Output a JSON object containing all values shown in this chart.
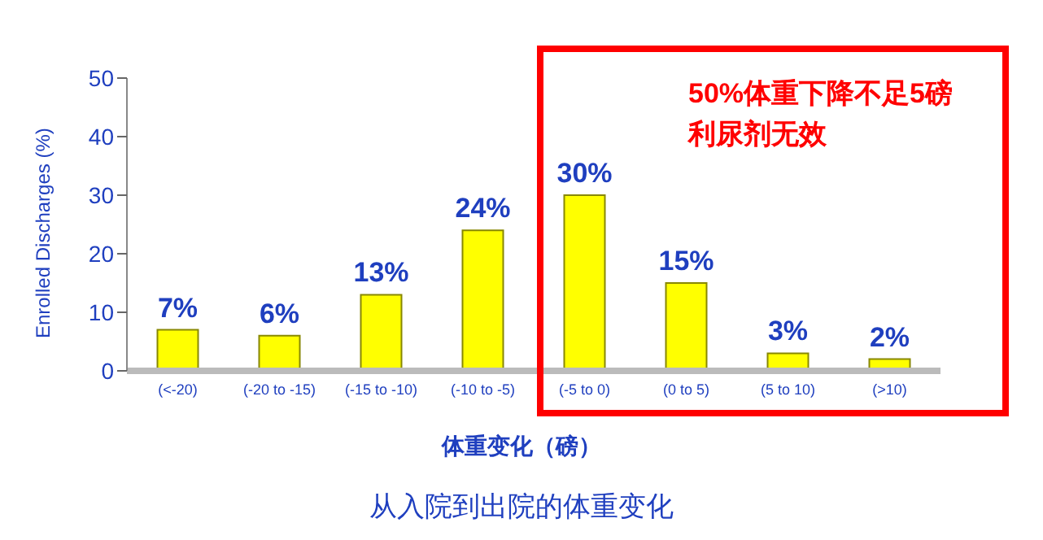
{
  "chart_data": {
    "type": "bar",
    "xlabel": "体重变化（磅）",
    "ylabel": "Enrolled Discharges (%)",
    "title": "从入院到出院的体重变化",
    "categories": [
      "(<-20)",
      "(-20 to -15)",
      "(-15 to -10)",
      "(-10 to -5)",
      "(-5 to 0)",
      "(0 to 5)",
      "(5 to 10)",
      "(>10)"
    ],
    "values": [
      7,
      6,
      13,
      24,
      30,
      15,
      3,
      2
    ],
    "value_labels": [
      "7%",
      "6%",
      "13%",
      "24%",
      "30%",
      "15%",
      "3%",
      "2%"
    ],
    "color": "#ffff00",
    "ylim": [
      0,
      50
    ],
    "yticks": [
      0,
      10,
      20,
      30,
      40,
      50
    ],
    "annotations": [
      "50%体重下降不足5磅",
      "利尿剂无效"
    ]
  }
}
